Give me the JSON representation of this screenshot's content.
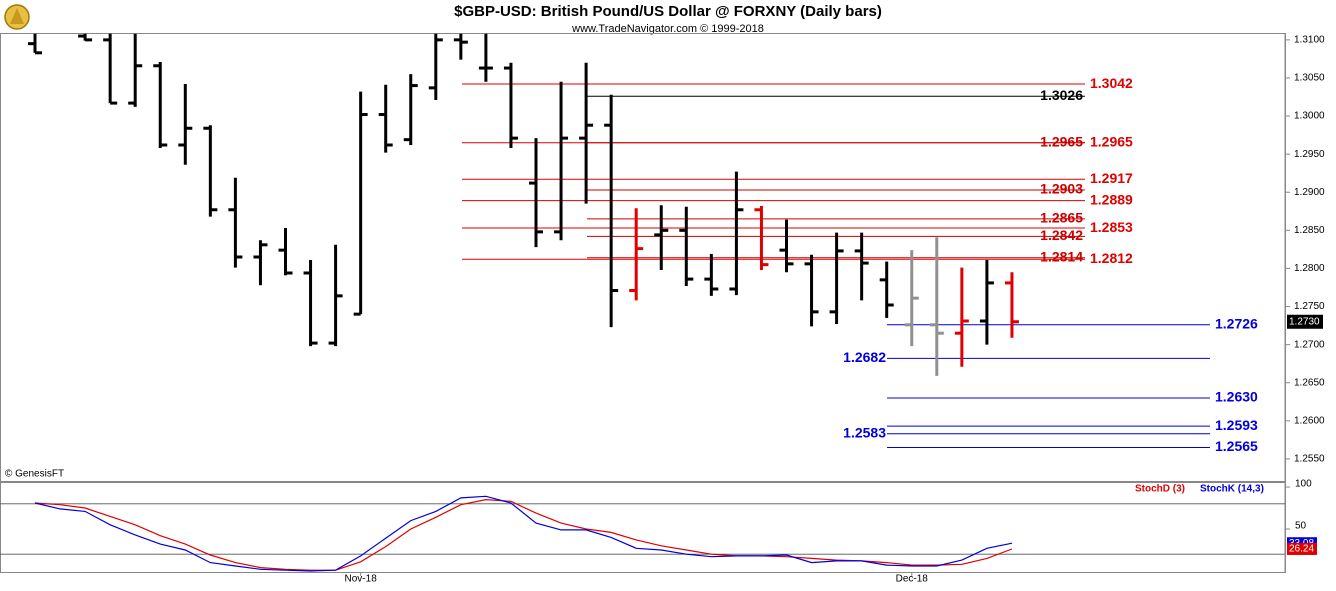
{
  "chart_data": [
    {
      "type": "ohlc",
      "title": "$GBP-USD:  British Pound/US Dollar @ FORXNY  (Daily bars)",
      "subtitle": "www.TradeNavigator.com © 1999-2018",
      "source": "© GenesisFT",
      "open": [
        1.3095,
        null,
        1.3105,
        1.31,
        1.3017,
        1.3066,
        1.2962,
        1.2984,
        1.2877,
        1.2815,
        1.2824,
        1.2794,
        1.2702,
        1.274,
        1.3002,
        1.2969,
        1.3037,
        1.31,
        1.3063,
        1.3063,
        1.2912,
        1.2848,
        1.2971,
        1.2988,
        1.2771,
        1.2844,
        1.285,
        1.2786,
        1.2773,
        1.2877,
        1.2824,
        1.2806,
        1.2743,
        1.2823,
        1.2785,
        1.2726,
        1.2726,
        1.2715,
        1.2731,
        1.2781
      ],
      "high": [
        1.3108,
        null,
        1.3108,
        1.3108,
        1.3108,
        1.3071,
        1.3042,
        1.2988,
        1.2919,
        1.2837,
        1.2853,
        1.2811,
        1.2831,
        1.3032,
        1.3041,
        1.3055,
        1.3108,
        1.3108,
        1.3108,
        1.307,
        1.2971,
        1.3045,
        1.307,
        1.3028,
        1.2879,
        1.2883,
        1.2881,
        1.2819,
        1.2927,
        1.2882,
        1.2864,
        1.2818,
        1.2847,
        1.2847,
        1.2809,
        1.2824,
        1.2841,
        1.2801,
        1.2811,
        1.2795
      ],
      "low": [
        1.3083,
        null,
        1.3099,
        1.3017,
        1.3012,
        1.2958,
        1.2936,
        1.2868,
        1.2801,
        1.2778,
        1.2791,
        1.2698,
        1.2698,
        1.274,
        1.2952,
        1.2962,
        1.3021,
        1.3074,
        1.3045,
        1.2958,
        1.2828,
        1.2837,
        1.2885,
        1.2723,
        1.2758,
        1.2798,
        1.2777,
        1.2764,
        1.2765,
        1.2798,
        1.2795,
        1.2724,
        1.2727,
        1.2758,
        1.2735,
        1.2698,
        1.2659,
        1.2671,
        1.27,
        1.2709
      ],
      "close": [
        1.3083,
        null,
        1.31,
        1.3017,
        1.3066,
        1.2962,
        1.2984,
        1.2877,
        1.2815,
        1.2831,
        1.2794,
        1.2702,
        1.2764,
        1.3002,
        1.2962,
        1.304,
        1.31,
        1.3097,
        1.3063,
        1.2971,
        1.2848,
        1.2971,
        1.2988,
        1.2771,
        1.2826,
        1.285,
        1.2786,
        1.2773,
        1.2877,
        1.2805,
        1.2806,
        1.2743,
        1.2823,
        1.2807,
        1.2752,
        1.2761,
        1.2715,
        1.2731,
        1.2781,
        1.273
      ],
      "colors": [
        "#000000",
        "#000000",
        "#000000",
        "#000000",
        "#000000",
        "#000000",
        "#000000",
        "#000000",
        "#000000",
        "#000000",
        "#000000",
        "#000000",
        "#000000",
        "#000000",
        "#000000",
        "#000000",
        "#000000",
        "#000000",
        "#000000",
        "#000000",
        "#000000",
        "#000000",
        "#000000",
        "#000000",
        "#e00000",
        "#000000",
        "#000000",
        "#000000",
        "#000000",
        "#e00000",
        "#000000",
        "#000000",
        "#000000",
        "#000000",
        "#000000",
        "#909090",
        "#909090",
        "#e00000",
        "#000000",
        "#e00000"
      ],
      "ylim": [
        1.2521,
        1.3109
      ],
      "yticks": [
        {
          "value": 1.255,
          "label": "1.2550"
        },
        {
          "value": 1.26,
          "label": "1.2600"
        },
        {
          "value": 1.265,
          "label": "1.2650"
        },
        {
          "value": 1.27,
          "label": "1.2700"
        },
        {
          "value": 1.275,
          "label": "1.2750"
        },
        {
          "value": 1.28,
          "label": "1.2800"
        },
        {
          "value": 1.285,
          "label": "1.2850"
        },
        {
          "value": 1.29,
          "label": "1.2900"
        },
        {
          "value": 1.295,
          "label": "1.2950"
        },
        {
          "value": 1.3,
          "label": "1.3000"
        },
        {
          "value": 1.305,
          "label": "1.3050"
        },
        {
          "value": 1.31,
          "label": "1.3100"
        }
      ],
      "levels": {
        "outer": {
          "color": "#e00000",
          "items": [
            {
              "value": 1.3042,
              "label": "1.3042"
            },
            {
              "value": 1.2965,
              "label": "1.2965"
            },
            {
              "value": 1.2917,
              "label": "1.2917"
            },
            {
              "value": 1.2889,
              "label": "1.2889"
            },
            {
              "value": 1.2853,
              "label": "1.2853"
            },
            {
              "value": 1.2812,
              "label": "1.2812"
            }
          ]
        },
        "inner": {
          "colors": [
            "#000000",
            "#cc0000",
            "#cc0000",
            "#cc0000",
            "#cc0000",
            "#cc0000"
          ],
          "items": [
            {
              "value": 1.3026,
              "label": "1.3026"
            },
            {
              "value": 1.2965,
              "label": "1.2965"
            },
            {
              "value": 1.2903,
              "label": "1.2903"
            },
            {
              "value": 1.2865,
              "label": "1.2865"
            },
            {
              "value": 1.2842,
              "label": "1.2842"
            },
            {
              "value": 1.2814,
              "label": "1.2814"
            }
          ]
        },
        "support": {
          "color": "#0000dd",
          "items": [
            {
              "value": 1.2726,
              "label": "1.2726"
            },
            {
              "value": 1.2682,
              "label": "1.2682"
            },
            {
              "value": 1.263,
              "label": "1.2630"
            },
            {
              "value": 1.2593,
              "label": "1.2593"
            },
            {
              "value": 1.2583,
              "label": "1.2583"
            },
            {
              "value": 1.2565,
              "label": "1.2565"
            }
          ]
        }
      },
      "last_price": {
        "value": 1.273,
        "label": "1.2730"
      }
    },
    {
      "type": "line",
      "categories": [
        null,
        null,
        null,
        null,
        null,
        null,
        null,
        null,
        null,
        null,
        null,
        null,
        null,
        "Nov-18",
        null,
        null,
        null,
        null,
        null,
        null,
        null,
        null,
        null,
        null,
        null,
        null,
        null,
        null,
        null,
        null,
        null,
        null,
        null,
        null,
        null,
        "Dec-18",
        null,
        null,
        null,
        null
      ],
      "series": [
        {
          "name": "StochD (3)",
          "color": "#e00000",
          "values": [
            81,
            79,
            75,
            65,
            55,
            42,
            32,
            19,
            10,
            4,
            2,
            1,
            1,
            11,
            29,
            50,
            64,
            79,
            85,
            83,
            69,
            57,
            50,
            46,
            37,
            30,
            25,
            20,
            18,
            18,
            17,
            15,
            13,
            12,
            10,
            7,
            7,
            8,
            15,
            26.24
          ]
        },
        {
          "name": "StochK (14,3)",
          "color": "#0000dd",
          "values": [
            81,
            74,
            71,
            55,
            43,
            32,
            25,
            10,
            6,
            2,
            1,
            0,
            1,
            18,
            39,
            60,
            71,
            87,
            89,
            81,
            57,
            49,
            49,
            40,
            27,
            25,
            20,
            17,
            18,
            18,
            19,
            10,
            12,
            12,
            7,
            6,
            6,
            13,
            27,
            33.08
          ]
        }
      ],
      "ylim": [
        -1.2,
        104.8
      ],
      "yticks": [
        50,
        100
      ],
      "hlines": [
        20,
        80
      ]
    }
  ]
}
